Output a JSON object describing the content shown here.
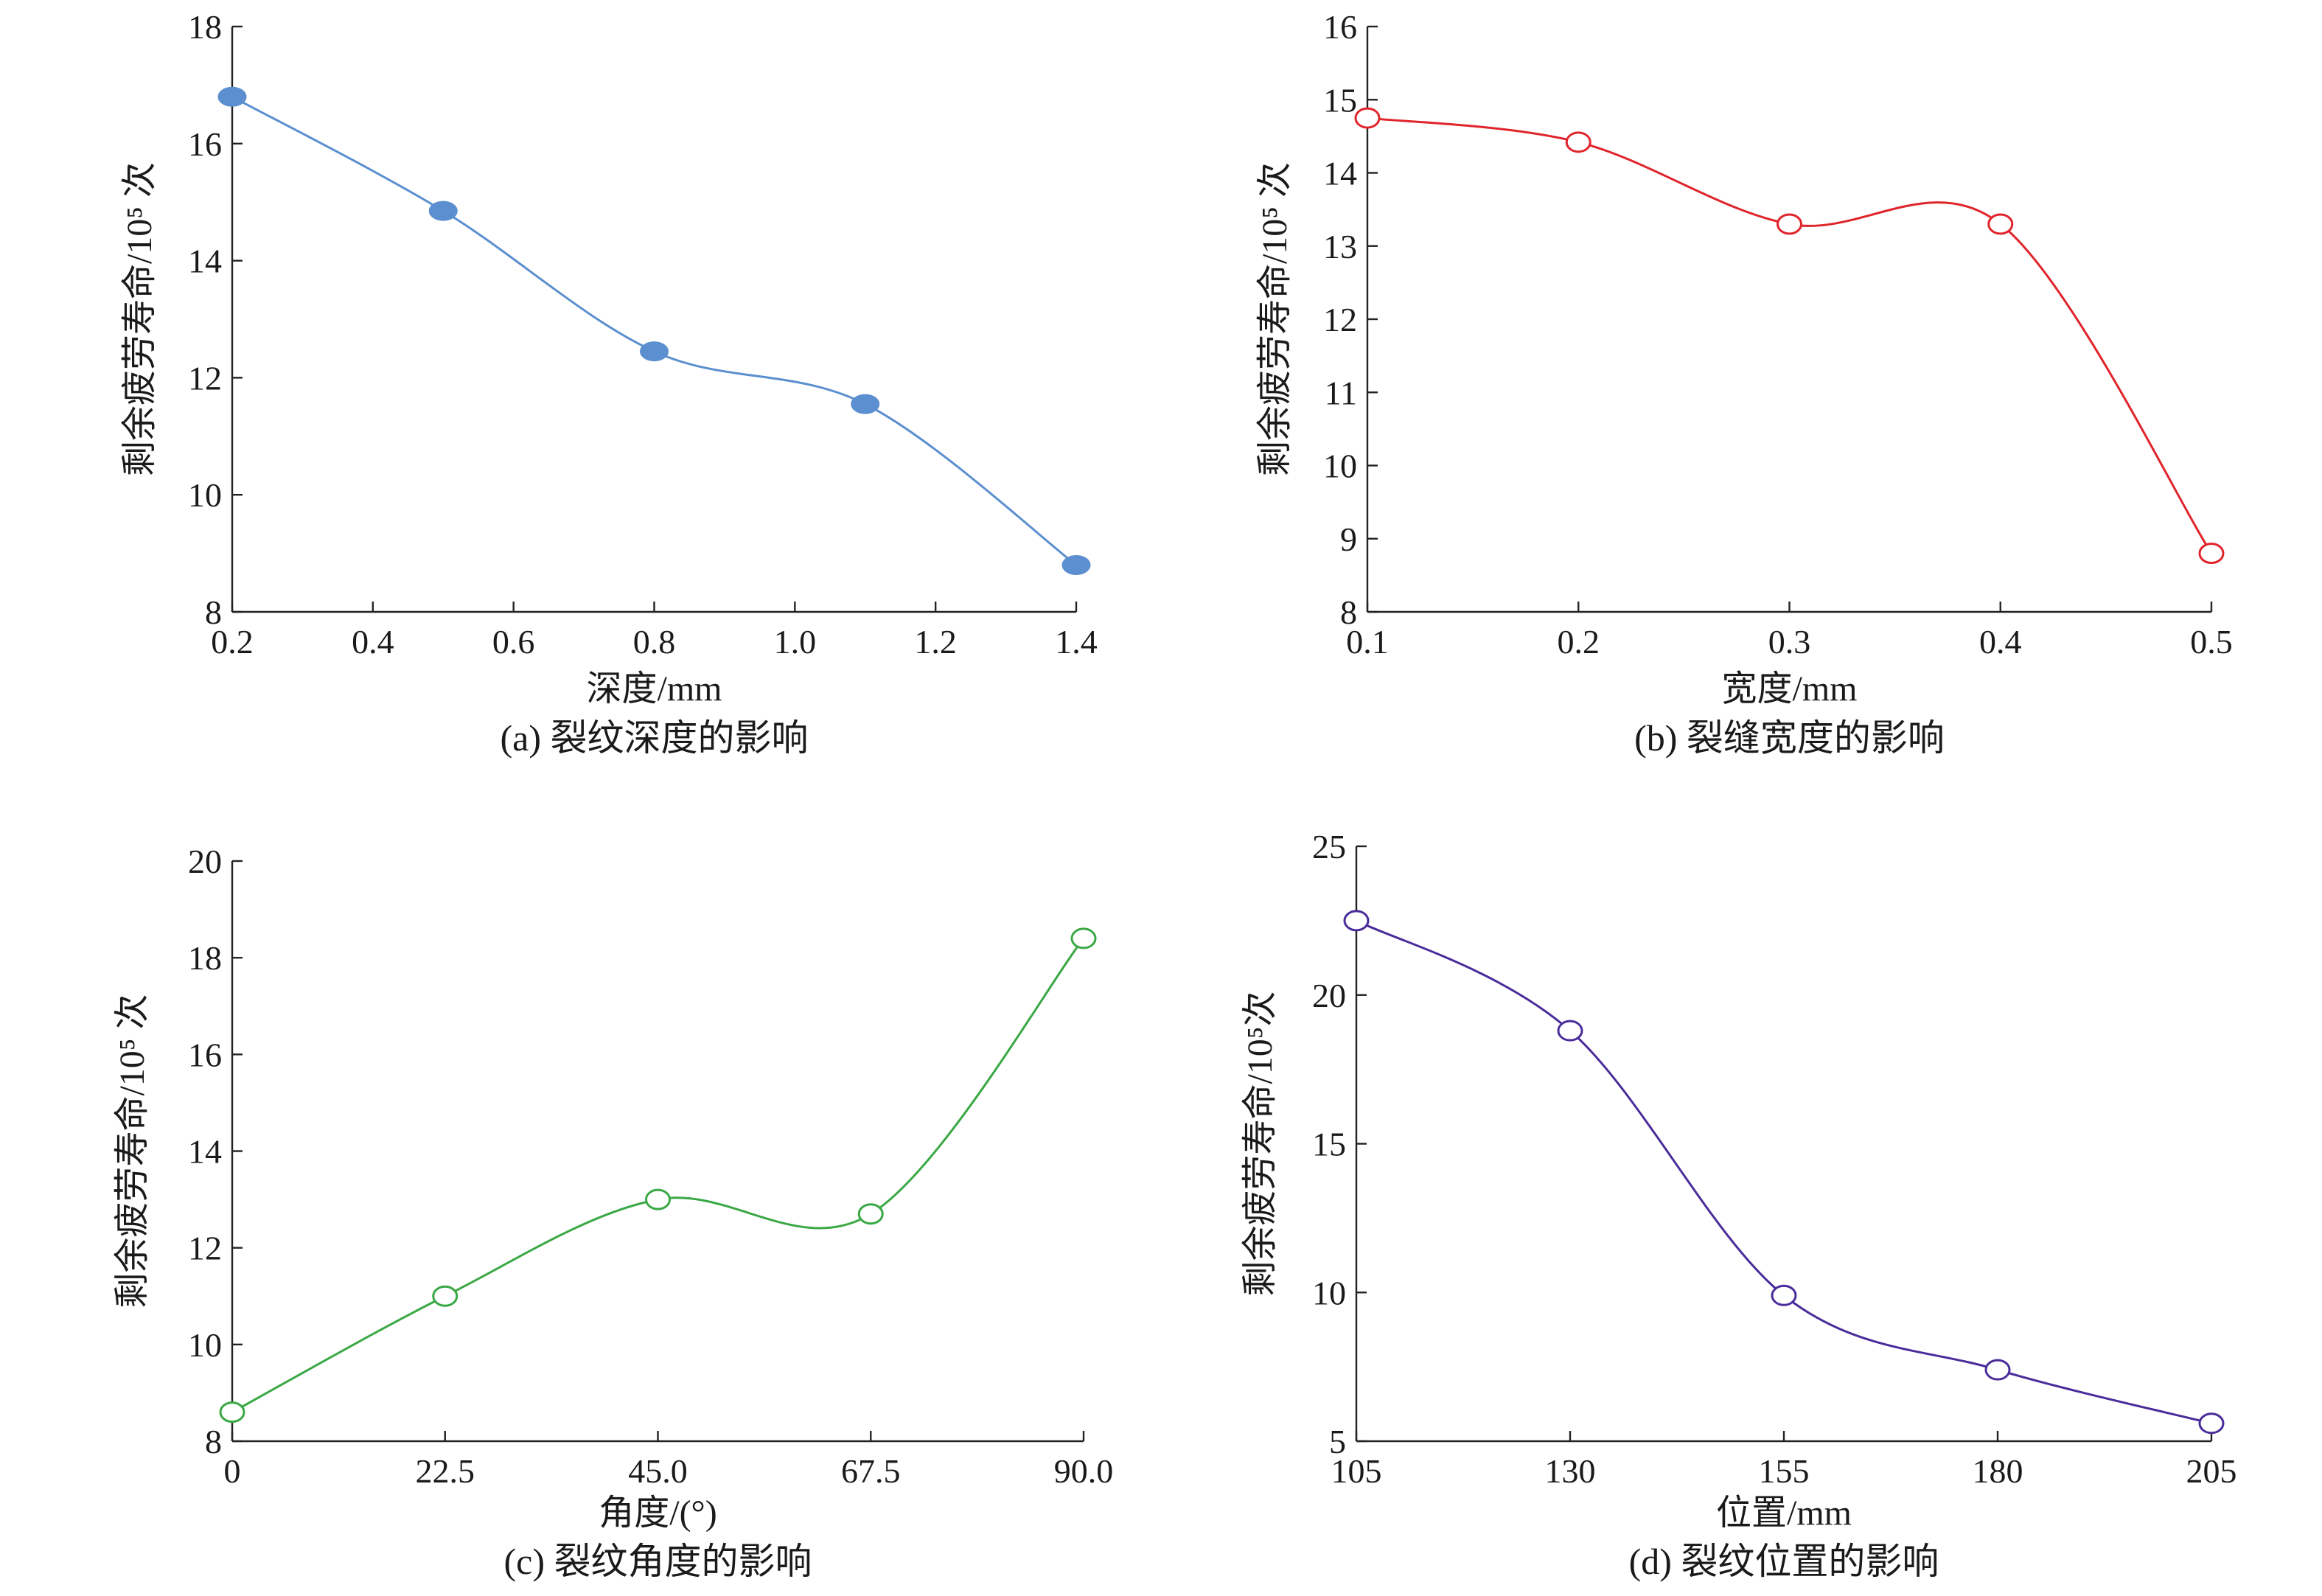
{
  "chart_data": [
    {
      "type": "line",
      "caption": "(a) 裂纹深度的影响",
      "xlabel": "深度/mm",
      "ylabel": "剩余疲劳寿命/10⁵ 次",
      "x": [
        0.2,
        0.5,
        0.8,
        1.1,
        1.4
      ],
      "values": [
        16.8,
        14.85,
        12.45,
        11.55,
        8.8
      ],
      "xlim": [
        0.2,
        1.4
      ],
      "ylim": [
        8,
        18
      ],
      "xticks": [
        "0.2",
        "0.4",
        "0.6",
        "0.8",
        "1.0",
        "1.2",
        "1.4"
      ],
      "xtick_values": [
        0.2,
        0.4,
        0.6,
        0.8,
        1.0,
        1.2,
        1.4
      ],
      "yticks": [
        "8",
        "10",
        "12",
        "14",
        "16",
        "18"
      ],
      "ytick_values": [
        8,
        10,
        12,
        14,
        16,
        18
      ],
      "color": "#5b8fcf",
      "marker": "filled-ellipse",
      "grid": false,
      "legend": "none"
    },
    {
      "type": "line",
      "caption": "(b) 裂缝宽度的影响",
      "xlabel": "宽度/mm",
      "ylabel": "剩余疲劳寿命/10⁵ 次",
      "x": [
        0.1,
        0.2,
        0.3,
        0.4,
        0.5
      ],
      "values": [
        14.75,
        14.42,
        13.3,
        13.3,
        8.8
      ],
      "xlim": [
        0.1,
        0.5
      ],
      "ylim": [
        8,
        16
      ],
      "xticks": [
        "0.1",
        "0.2",
        "0.3",
        "0.4",
        "0.5"
      ],
      "xtick_values": [
        0.1,
        0.2,
        0.3,
        0.4,
        0.5
      ],
      "yticks": [
        "8",
        "9",
        "10",
        "11",
        "12",
        "13",
        "14",
        "15",
        "16"
      ],
      "ytick_values": [
        8,
        9,
        10,
        11,
        12,
        13,
        14,
        15,
        16
      ],
      "color": "#e0242b",
      "marker": "open-ellipse",
      "grid": false,
      "legend": "none"
    },
    {
      "type": "line",
      "caption": "(c) 裂纹角度的影响",
      "xlabel": "角度/(°)",
      "ylabel": "剩余疲劳寿命/10⁵ 次",
      "x": [
        0,
        22.5,
        45.0,
        67.5,
        90.0
      ],
      "values": [
        8.6,
        11.0,
        13.0,
        12.7,
        18.4
      ],
      "xlim": [
        0,
        90
      ],
      "ylim": [
        8,
        20
      ],
      "xticks": [
        "0",
        "22.5",
        "45.0",
        "67.5",
        "90.0"
      ],
      "xtick_values": [
        0,
        22.5,
        45,
        67.5,
        90
      ],
      "yticks": [
        "8",
        "10",
        "12",
        "14",
        "16",
        "18",
        "20"
      ],
      "ytick_values": [
        8,
        10,
        12,
        14,
        16,
        18,
        20
      ],
      "color": "#3aa845",
      "marker": "open-ellipse",
      "grid": false,
      "legend": "none"
    },
    {
      "type": "line",
      "caption": "(d) 裂纹位置的影响",
      "xlabel": "位置/mm",
      "ylabel": "剩余疲劳寿命/10⁵次",
      "x": [
        105,
        130,
        155,
        180,
        205
      ],
      "values": [
        22.5,
        18.8,
        9.9,
        7.4,
        5.6
      ],
      "xlim": [
        105,
        205
      ],
      "ylim": [
        5,
        25
      ],
      "xticks": [
        "105",
        "130",
        "155",
        "180",
        "205"
      ],
      "xtick_values": [
        105,
        130,
        155,
        180,
        205
      ],
      "yticks": [
        "5",
        "10",
        "15",
        "20",
        "25"
      ],
      "ytick_values": [
        5,
        10,
        15,
        20,
        25
      ],
      "color": "#4a2c9a",
      "marker": "open-ellipse",
      "grid": false,
      "legend": "none"
    }
  ]
}
